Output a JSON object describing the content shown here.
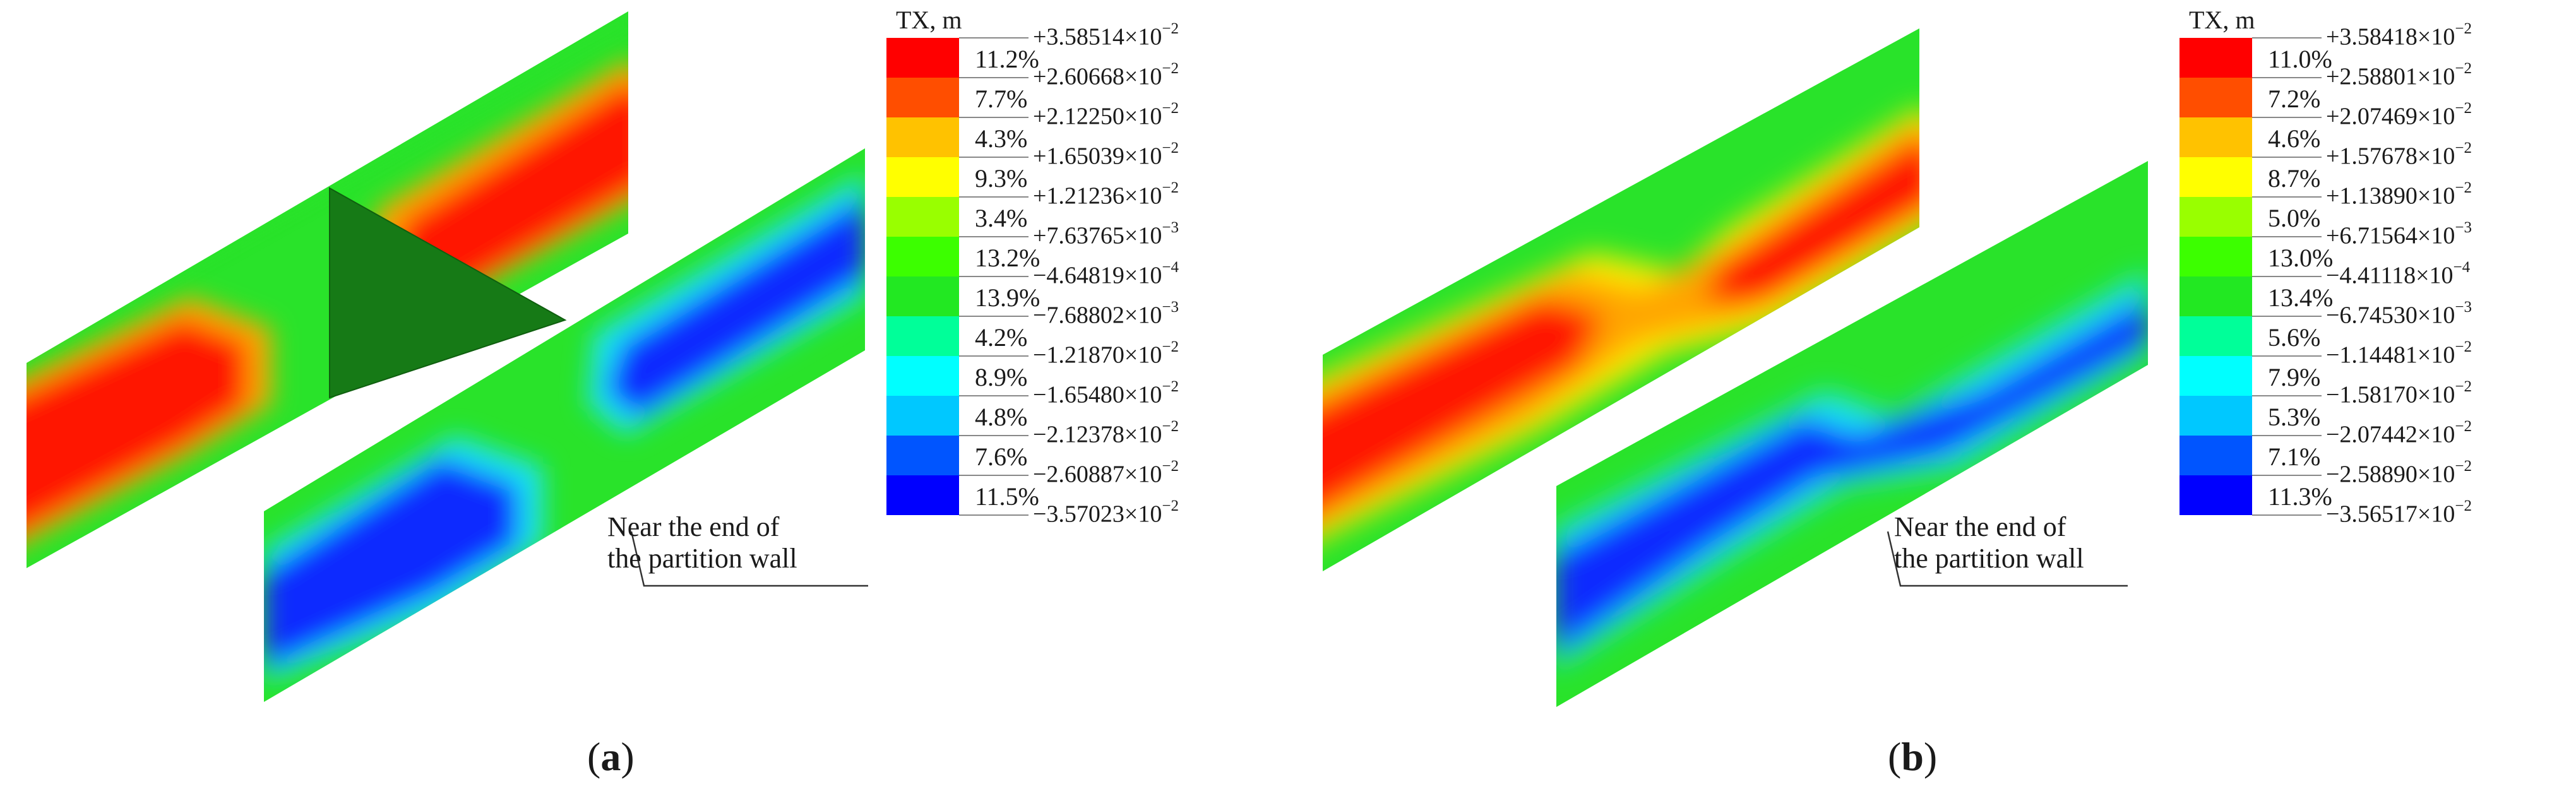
{
  "panels": [
    {
      "id": "a",
      "caption_open": "(",
      "caption_letter": "a",
      "caption_close": ")",
      "legend_title": "TX, m",
      "callout_line1": "Near the end of",
      "callout_line2": "the partition wall",
      "legend": [
        {
          "pct": "11.2%",
          "color": "#ff0000"
        },
        {
          "pct": "7.7%",
          "color": "#ff4e00"
        },
        {
          "pct": "4.3%",
          "color": "#ffc200"
        },
        {
          "pct": "9.3%",
          "color": "#ffff00"
        },
        {
          "pct": "3.4%",
          "color": "#99ff00"
        },
        {
          "pct": "13.2%",
          "color": "#3cff00"
        },
        {
          "pct": "13.9%",
          "color": "#22e822"
        },
        {
          "pct": "4.2%",
          "color": "#00ff99"
        },
        {
          "pct": "8.9%",
          "color": "#00ffff"
        },
        {
          "pct": "4.8%",
          "color": "#00c8ff"
        },
        {
          "pct": "7.6%",
          "color": "#0055ff"
        },
        {
          "pct": "11.5%",
          "color": "#0000ff"
        }
      ],
      "values": [
        {
          "mant": "+3.58514×10",
          "exp": "−2"
        },
        {
          "mant": "+2.60668×10",
          "exp": "−2"
        },
        {
          "mant": "+2.12250×10",
          "exp": "−2"
        },
        {
          "mant": "+1.65039×10",
          "exp": "−2"
        },
        {
          "mant": "+1.21236×10",
          "exp": "−2"
        },
        {
          "mant": "+7.63765×10",
          "exp": "−3"
        },
        {
          "mant": "−4.64819×10",
          "exp": "−4"
        },
        {
          "mant": "−7.68802×10",
          "exp": "−3"
        },
        {
          "mant": "−1.21870×10",
          "exp": "−2"
        },
        {
          "mant": "−1.65480×10",
          "exp": "−2"
        },
        {
          "mant": "−2.12378×10",
          "exp": "−2"
        },
        {
          "mant": "−2.60887×10",
          "exp": "−2"
        },
        {
          "mant": "−3.57023×10",
          "exp": "−2"
        }
      ]
    },
    {
      "id": "b",
      "caption_open": "(",
      "caption_letter": "b",
      "caption_close": ")",
      "legend_title": "TX, m",
      "callout_line1": "Near the end of",
      "callout_line2": "the partition wall",
      "legend": [
        {
          "pct": "11.0%",
          "color": "#ff0000"
        },
        {
          "pct": "7.2%",
          "color": "#ff4e00"
        },
        {
          "pct": "4.6%",
          "color": "#ffc200"
        },
        {
          "pct": "8.7%",
          "color": "#ffff00"
        },
        {
          "pct": "5.0%",
          "color": "#99ff00"
        },
        {
          "pct": "13.0%",
          "color": "#3cff00"
        },
        {
          "pct": "13.4%",
          "color": "#22e822"
        },
        {
          "pct": "5.6%",
          "color": "#00ff99"
        },
        {
          "pct": "7.9%",
          "color": "#00ffff"
        },
        {
          "pct": "5.3%",
          "color": "#00c8ff"
        },
        {
          "pct": "7.1%",
          "color": "#0055ff"
        },
        {
          "pct": "11.3%",
          "color": "#0000ff"
        }
      ],
      "values": [
        {
          "mant": "+3.58418×10",
          "exp": "−2"
        },
        {
          "mant": "+2.58801×10",
          "exp": "−2"
        },
        {
          "mant": "+2.07469×10",
          "exp": "−2"
        },
        {
          "mant": "+1.57678×10",
          "exp": "−2"
        },
        {
          "mant": "+1.13890×10",
          "exp": "−2"
        },
        {
          "mant": "+6.71564×10",
          "exp": "−3"
        },
        {
          "mant": "−4.41118×10",
          "exp": "−4"
        },
        {
          "mant": "−6.74530×10",
          "exp": "−3"
        },
        {
          "mant": "−1.14481×10",
          "exp": "−2"
        },
        {
          "mant": "−1.58170×10",
          "exp": "−2"
        },
        {
          "mant": "−2.07442×10",
          "exp": "−2"
        },
        {
          "mant": "−2.58890×10",
          "exp": "−2"
        },
        {
          "mant": "−3.56517×10",
          "exp": "−2"
        }
      ]
    }
  ],
  "colors": {
    "green": "#29e32a",
    "red": "#ff1500",
    "orange": "#ffa500",
    "yellow": "#ffee00",
    "blue": "#0a2bff",
    "cyan": "#1ae3f5",
    "wall": "#167a16"
  }
}
